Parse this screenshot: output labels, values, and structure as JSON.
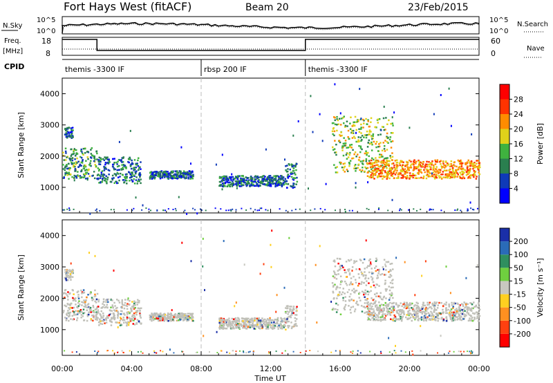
{
  "header": {
    "station": "Fort Hays West (fitACF)",
    "beam": "Beam 20",
    "date": "23/Feb/2015"
  },
  "noise_panel": {
    "left_label": "N.Sky",
    "right_label": "N.Search",
    "left_ticks": [
      "10^5",
      "10^0"
    ],
    "right_ticks": [
      "10^5",
      "10^0"
    ]
  },
  "freq_panel": {
    "left_label": "Freq.",
    "left_unit": "[MHz]",
    "right_label": "Nave",
    "left_ticks": [
      "18",
      "8"
    ],
    "right_ticks": [
      "60",
      "0"
    ]
  },
  "cpid": {
    "label": "CPID",
    "segments": [
      {
        "name": "themis -3300 IF",
        "start_h": 0,
        "end_h": 8
      },
      {
        "name": "rbsp 200 IF",
        "start_h": 8,
        "end_h": 14
      },
      {
        "name": "themis -3300 IF",
        "start_h": 14,
        "end_h": 24
      }
    ]
  },
  "chart_data": [
    {
      "type": "heatmap",
      "name": "power",
      "xlabel": "Time UT",
      "ylabel": "Slant Range [km]",
      "xlim": [
        0,
        24
      ],
      "ylim": [
        180,
        4500
      ],
      "yticks": [
        "1000",
        "2000",
        "3000",
        "4000"
      ],
      "colorbar": {
        "label": "Power [dB]",
        "ticks": [
          "4",
          "8",
          "12",
          "16",
          "20",
          "24",
          "28"
        ],
        "range": [
          0,
          30
        ],
        "colors": [
          "#0000ff",
          "#0f3ab8",
          "#2a7f4f",
          "#3fb23f",
          "#e0d21a",
          "#ff8c00",
          "#ff3300",
          "#ff0000"
        ]
      },
      "scatter_regions": [
        {
          "t": [
            0.0,
            2.0
          ],
          "r": [
            1300,
            2300
          ],
          "level": 10
        },
        {
          "t": [
            0.1,
            0.6
          ],
          "r": [
            2600,
            2950
          ],
          "level": 5
        },
        {
          "t": [
            2.0,
            4.5
          ],
          "r": [
            1150,
            2000
          ],
          "level": 7
        },
        {
          "t": [
            5.0,
            7.5
          ],
          "r": [
            1300,
            1550
          ],
          "level": 6
        },
        {
          "t": [
            9.0,
            12.8
          ],
          "r": [
            1050,
            1400
          ],
          "level": 6
        },
        {
          "t": [
            12.8,
            13.5
          ],
          "r": [
            1000,
            1800
          ],
          "level": 7
        },
        {
          "t": [
            15.5,
            19.0
          ],
          "r": [
            1500,
            3300
          ],
          "level": 14
        },
        {
          "t": [
            17.5,
            24.0
          ],
          "r": [
            1300,
            1900
          ],
          "level": 20
        }
      ]
    },
    {
      "type": "heatmap",
      "name": "velocity",
      "xlabel": "Time UT",
      "ylabel": "Slant Range [km]",
      "xlim": [
        0,
        24
      ],
      "ylim": [
        180,
        4500
      ],
      "yticks": [
        "1000",
        "2000",
        "3000",
        "4000"
      ],
      "xticks": [
        "00:00",
        "04:00",
        "08:00",
        "12:00",
        "16:00",
        "20:00",
        "00:00"
      ],
      "colorbar": {
        "label": "Velocity [m s⁻¹]",
        "ticks": [
          "200",
          "100",
          "50",
          "15",
          "-15",
          "-50",
          "-100",
          "-200"
        ],
        "colors": [
          "#1a2fa8",
          "#2a6bb8",
          "#2f8f5f",
          "#6fcf3f",
          "#c8c8c0",
          "#ffd020",
          "#ff9020",
          "#ff4010",
          "#ff0000"
        ]
      },
      "ground_scatter_color": "#c0c0b8"
    }
  ]
}
